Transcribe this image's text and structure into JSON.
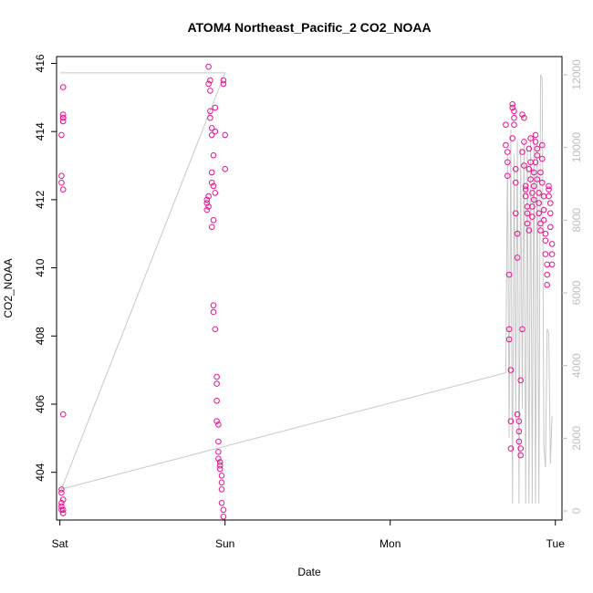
{
  "chart_data": {
    "type": "scatter",
    "title": "ATOM4 Northeast_Pacific_2 CO2_NOAA",
    "xlabel": "Date",
    "ylabel": "CO2_NOAA",
    "x_ticks": [
      "Sat",
      "Sun",
      "Mon",
      "Tue"
    ],
    "y_ticks": [
      404,
      406,
      408,
      410,
      412,
      414,
      416
    ],
    "y2_ticks": [
      0,
      2000,
      4000,
      6000,
      8000,
      10000,
      12000
    ],
    "xlim_days": [
      -0.02,
      3.04
    ],
    "ylim": [
      402.6,
      416.2
    ],
    "y2lim": [
      -250,
      12500
    ],
    "grid": false,
    "colors": {
      "points": "#e8118f",
      "altitude": "#c8c8c8",
      "axis": "#000000",
      "right_axis": "#bdbdbd"
    },
    "series": [
      {
        "kind": "points",
        "x_days": [
          0.01,
          0.01,
          0.01,
          0.01,
          0.01,
          0.01,
          0.01,
          0.01,
          0.02,
          0.02,
          0.02,
          0.02,
          0.02,
          0.02,
          0.02,
          0.02,
          0.02,
          0.02,
          0.89,
          0.89,
          0.89,
          0.9,
          0.9,
          0.9,
          0.9,
          0.91,
          0.91,
          0.91,
          0.91,
          0.92,
          0.92,
          0.92,
          0.92,
          0.92,
          0.93,
          0.93,
          0.93,
          0.93,
          0.93,
          0.94,
          0.94,
          0.94,
          0.94,
          0.95,
          0.95,
          0.95,
          0.95,
          0.96,
          0.96,
          0.96,
          0.96,
          0.97,
          0.97,
          0.97,
          0.98,
          0.98,
          0.98,
          0.98,
          0.99,
          0.99,
          0.99,
          0.99,
          1.0,
          1.0,
          2.7,
          2.7,
          2.71,
          2.71,
          2.71,
          2.72,
          2.72,
          2.72,
          2.73,
          2.73,
          2.73,
          2.74,
          2.74,
          2.74,
          2.75,
          2.75,
          2.75,
          2.76,
          2.76,
          2.76,
          2.77,
          2.77,
          2.77,
          2.78,
          2.78,
          2.78,
          2.79,
          2.79,
          2.79,
          2.8,
          2.8,
          2.8,
          2.81,
          2.81,
          2.81,
          2.82,
          2.82,
          2.82,
          2.83,
          2.83,
          2.83,
          2.84,
          2.84,
          2.84,
          2.85,
          2.85,
          2.85,
          2.86,
          2.86,
          2.86,
          2.87,
          2.87,
          2.87,
          2.88,
          2.88,
          2.88,
          2.89,
          2.89,
          2.89,
          2.9,
          2.9,
          2.9,
          2.91,
          2.91,
          2.91,
          2.92,
          2.92,
          2.92,
          2.93,
          2.93,
          2.93,
          2.94,
          2.94,
          2.94,
          2.95,
          2.95,
          2.95,
          2.96,
          2.96,
          2.96,
          2.97,
          2.97,
          2.97,
          2.98,
          2.98,
          2.98
        ],
        "y": [
          403.5,
          403.4,
          403.1,
          402.9,
          403.0,
          413.9,
          412.7,
          412.5,
          412.3,
          414.3,
          414.4,
          414.5,
          414.4,
          415.3,
          405.7,
          402.8,
          402.9,
          403.2,
          411.7,
          411.9,
          412.0,
          411.8,
          412.1,
          415.9,
          415.4,
          415.5,
          415.2,
          414.6,
          414.4,
          414.1,
          413.9,
          412.5,
          412.8,
          411.2,
          411.4,
          408.9,
          408.7,
          413.3,
          412.4,
          412.2,
          414.7,
          414.0,
          408.2,
          406.8,
          406.6,
          406.1,
          405.5,
          405.4,
          404.9,
          404.6,
          404.4,
          404.3,
          404.2,
          404.1,
          403.9,
          403.7,
          403.5,
          403.1,
          402.9,
          402.7,
          415.5,
          415.4,
          413.9,
          412.9,
          414.2,
          413.6,
          413.4,
          413.1,
          412.7,
          409.8,
          408.2,
          407.9,
          407.0,
          405.5,
          404.7,
          413.8,
          414.8,
          414.7,
          414.6,
          414.4,
          414.2,
          412.9,
          412.5,
          411.6,
          411.0,
          410.3,
          405.7,
          405.5,
          405.2,
          404.9,
          404.7,
          404.5,
          406.7,
          408.2,
          413.4,
          414.5,
          414.4,
          413.7,
          413.0,
          412.4,
          412.3,
          412.1,
          411.8,
          411.6,
          411.3,
          411.1,
          412.9,
          413.5,
          413.8,
          413.1,
          412.6,
          412.2,
          411.8,
          411.5,
          412.0,
          412.4,
          412.8,
          413.1,
          413.7,
          413.9,
          413.5,
          413.3,
          412.6,
          412.2,
          411.9,
          411.6,
          411.3,
          411.1,
          412.8,
          413.2,
          413.6,
          412.5,
          412.1,
          411.7,
          411.4,
          411.0,
          410.8,
          410.4,
          410.1,
          409.8,
          409.5,
          412.1,
          412.4,
          412.3,
          411.9,
          411.6,
          411.2,
          410.7,
          410.4,
          410.1
        ]
      },
      {
        "kind": "altitude-line",
        "axis": "right",
        "x_days": [
          0.0,
          0.01,
          0.02,
          0.03,
          0.04,
          0.88,
          0.89,
          0.9,
          0.91,
          0.92,
          0.93,
          0.94,
          0.95,
          0.96,
          0.97,
          0.98,
          0.99,
          1.0,
          1.0,
          0.01,
          0.01,
          2.7,
          2.71,
          2.72,
          2.73,
          2.74,
          2.75,
          2.76,
          2.77,
          2.78,
          2.79,
          2.8,
          2.81,
          2.82,
          2.83,
          2.84,
          2.85,
          2.86,
          2.87,
          2.88,
          2.89,
          2.9,
          2.91,
          2.92,
          2.93,
          2.94,
          2.95,
          2.96,
          2.97,
          2.98
        ],
        "y": [
          12050,
          12050,
          12050,
          12050,
          12050,
          12050,
          12050,
          12050,
          12050,
          12050,
          12050,
          12050,
          12050,
          12050,
          12050,
          12050,
          12050,
          12050,
          12050,
          600,
          600,
          3800,
          9800,
          2000,
          10500,
          200,
          9800,
          2500,
          10200,
          200,
          10000,
          2800,
          10200,
          200,
          10000,
          200,
          10300,
          200,
          10400,
          200,
          10200,
          200,
          12000,
          11900,
          1800,
          1200,
          5000,
          4900,
          1300,
          2600
        ]
      }
    ]
  }
}
